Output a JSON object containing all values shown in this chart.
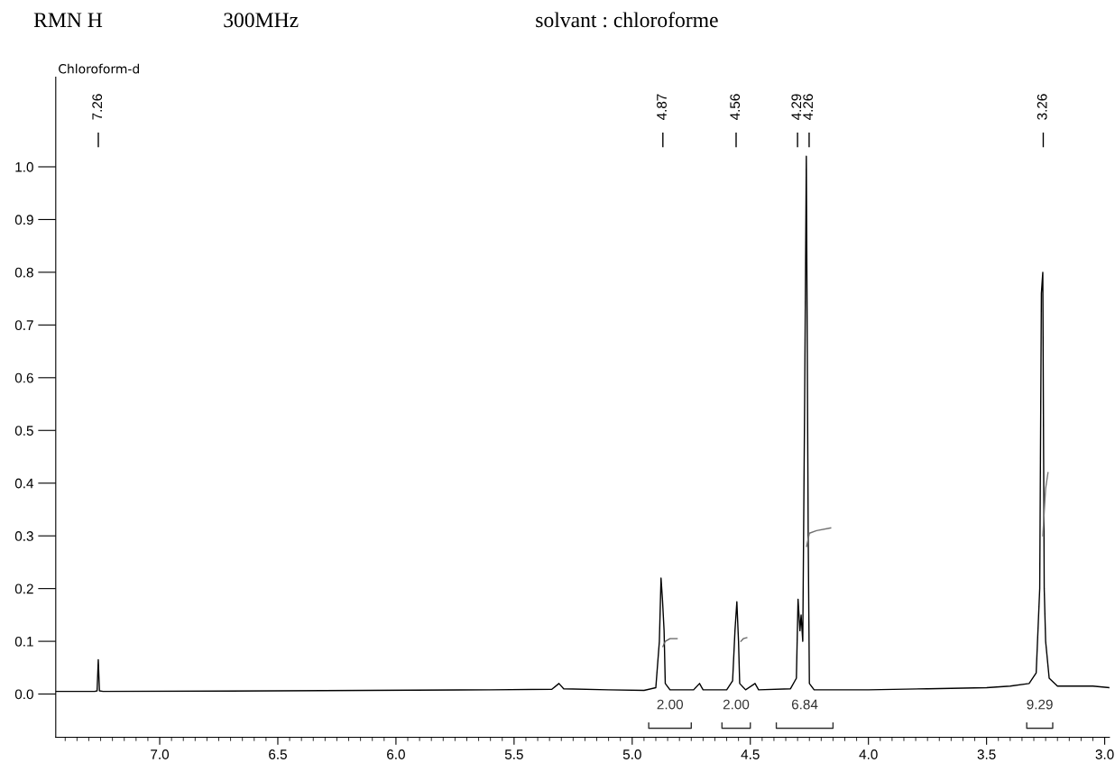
{
  "chart_data": {
    "type": "line",
    "title": "RMN H",
    "annotations": [
      "300MHz",
      "solvant : chloroforme",
      "Chloroform-d",
      "7.26",
      "4.87",
      "4.56",
      "4.29",
      "4.26",
      "3.26",
      "2.00",
      "2.00",
      "6.84",
      "9.29"
    ],
    "series": [
      {
        "color": "#000000",
        "x": [
          7.44,
          7.3,
          7.275,
          7.265,
          7.26,
          7.255,
          7.24,
          6.5,
          5.6,
          5.34,
          5.31,
          5.29,
          5.1,
          4.95,
          4.9,
          4.885,
          4.878,
          4.872,
          4.865,
          4.86,
          4.84,
          4.74,
          4.715,
          4.7,
          4.6,
          4.575,
          4.565,
          4.557,
          4.55,
          4.545,
          4.52,
          4.48,
          4.465,
          4.33,
          4.305,
          4.298,
          4.29,
          4.285,
          4.278,
          4.27,
          4.263,
          4.255,
          4.25,
          4.23,
          4.0,
          3.75,
          3.5,
          3.4,
          3.32,
          3.29,
          3.275,
          3.268,
          3.262,
          3.256,
          3.25,
          3.235,
          3.2,
          3.05,
          2.98
        ],
        "values": [
          0.005,
          0.005,
          0.005,
          0.006,
          0.065,
          0.006,
          0.005,
          0.006,
          0.008,
          0.009,
          0.02,
          0.01,
          0.008,
          0.007,
          0.012,
          0.1,
          0.22,
          0.18,
          0.12,
          0.02,
          0.008,
          0.008,
          0.02,
          0.008,
          0.008,
          0.025,
          0.12,
          0.175,
          0.1,
          0.02,
          0.008,
          0.02,
          0.008,
          0.01,
          0.03,
          0.18,
          0.12,
          0.15,
          0.1,
          0.56,
          1.02,
          0.3,
          0.02,
          0.008,
          0.008,
          0.01,
          0.012,
          0.015,
          0.02,
          0.04,
          0.2,
          0.76,
          0.8,
          0.2,
          0.1,
          0.03,
          0.015,
          0.015,
          0.012
        ]
      },
      {
        "color": "#606060",
        "x": [
          4.87,
          4.86,
          4.84,
          4.81
        ],
        "values": [
          0.09,
          0.1,
          0.105,
          0.105
        ]
      },
      {
        "color": "#686868",
        "x": [
          4.54,
          4.53,
          4.515
        ],
        "values": [
          0.1,
          0.105,
          0.107
        ]
      },
      {
        "color": "#707070",
        "x": [
          4.262,
          4.25,
          4.22,
          4.16
        ],
        "values": [
          0.28,
          0.305,
          0.31,
          0.315
        ]
      },
      {
        "color": "#787878",
        "x": [
          3.262,
          3.25,
          3.24
        ],
        "values": [
          0.3,
          0.39,
          0.42
        ]
      },
      {
        "color": "#303030",
        "x": [
          4.93,
          4.93,
          4.75,
          4.75
        ],
        "values": [
          -0.055,
          -0.065,
          -0.065,
          -0.055
        ]
      },
      {
        "color": "#303030",
        "x": [
          4.62,
          4.62,
          4.5,
          4.5
        ],
        "values": [
          -0.055,
          -0.065,
          -0.065,
          -0.055
        ]
      },
      {
        "color": "#303030",
        "x": [
          4.39,
          4.39,
          4.15,
          4.15
        ],
        "values": [
          -0.055,
          -0.065,
          -0.065,
          -0.055
        ]
      },
      {
        "color": "#303030",
        "x": [
          3.33,
          3.33,
          3.22,
          3.22
        ],
        "values": [
          -0.055,
          -0.065,
          -0.065,
          -0.055
        ]
      }
    ],
    "xlim": [
      7.44,
      2.98
    ],
    "xticks": [
      {
        "value": 7,
        "label": "7.0"
      },
      6.5,
      {
        "value": 6,
        "label": "6.0"
      },
      5.5,
      {
        "value": 5,
        "label": "5.0"
      },
      4.5,
      {
        "value": 4,
        "label": "4.0"
      },
      3.5,
      {
        "value": 3,
        "label": "3.0"
      }
    ],
    "ylim": [
      -0.082,
      1.17
    ],
    "yticks": [
      {
        "value": 0,
        "label": "0.0"
      },
      0.1,
      0.2,
      0.3,
      0.4,
      0.5,
      0.6,
      0.7,
      0.8,
      0.9,
      {
        "value": 1,
        "label": "1.0"
      }
    ],
    "grid": false,
    "legend": false
  }
}
